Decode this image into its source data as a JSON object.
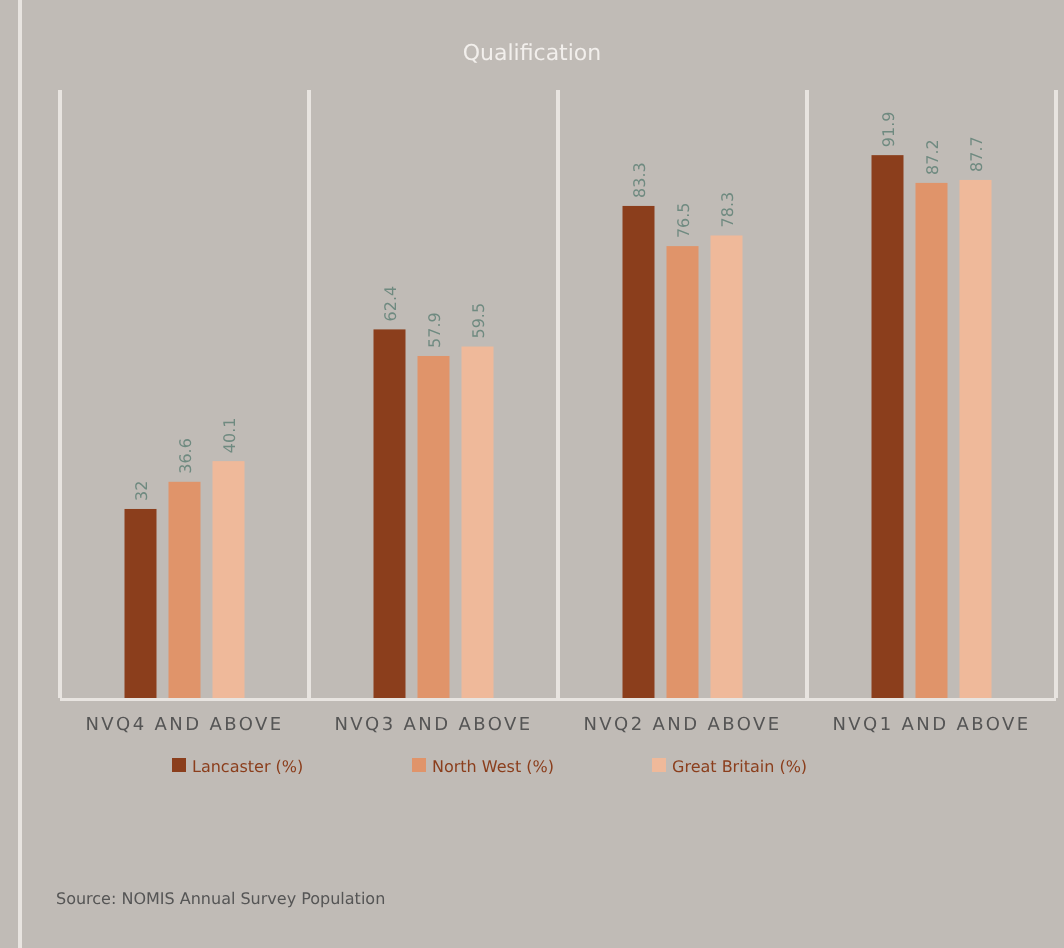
{
  "chart_data": {
    "type": "bar",
    "title": "Qualification",
    "categories": [
      "NVQ4 AND ABOVE",
      "NVQ3 AND ABOVE",
      "NVQ2 AND ABOVE",
      "NVQ1 AND ABOVE"
    ],
    "series": [
      {
        "name": "Lancaster (%)",
        "color": "#8b3e1c",
        "values": [
          32,
          62.4,
          83.3,
          91.9
        ]
      },
      {
        "name": "North West (%)",
        "color": "#e0946a",
        "values": [
          36.6,
          57.9,
          76.5,
          87.2
        ]
      },
      {
        "name": "Great Britain (%)",
        "color": "#efb99a",
        "values": [
          40.1,
          59.5,
          78.3,
          87.7
        ]
      }
    ],
    "data_labels": true,
    "legend": "bottom",
    "annotations": [
      "Source: NOMIS Annual Survey Population"
    ]
  }
}
